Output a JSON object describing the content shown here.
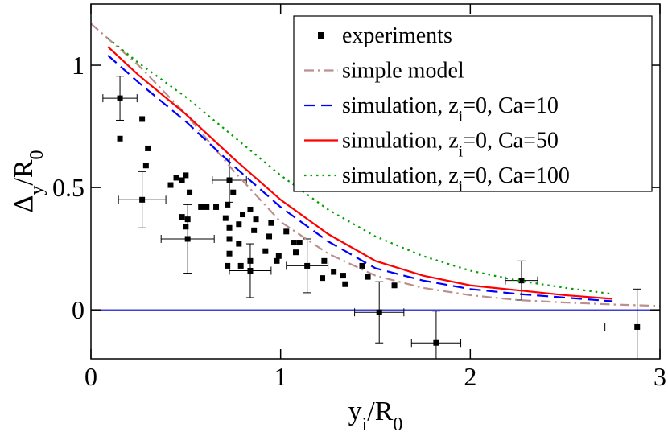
{
  "chart_data": {
    "type": "scatter",
    "xlabel": [
      {
        "text": "y"
      },
      {
        "text": "i",
        "sub": true
      },
      {
        "text": "/R"
      },
      {
        "text": "0",
        "sub": true
      }
    ],
    "ylabel": [
      {
        "text": "Δ"
      },
      {
        "text": "y",
        "sub": true
      },
      {
        "text": "/R"
      },
      {
        "text": "0",
        "sub": true
      }
    ],
    "xlim": [
      0,
      3
    ],
    "ylim": [
      -0.2,
      1.25
    ],
    "xticks": [
      0,
      1,
      2,
      3
    ],
    "yticks": [
      0,
      0.5,
      1
    ],
    "legend": "upper right",
    "zero_line": {
      "y": 0,
      "color": "#0000cc"
    },
    "series": [
      {
        "type": "scatter",
        "name": [
          {
            "text": "experiments"
          }
        ],
        "color": "#000000",
        "x": [
          0.153,
          0.27,
          0.51,
          0.73,
          0.84,
          1.14,
          1.52,
          1.82,
          2.27,
          2.88,
          0.153,
          0.27,
          0.3,
          0.29,
          0.42,
          0.45,
          0.48,
          0.5,
          0.52,
          0.48,
          0.51,
          0.5,
          0.58,
          0.61,
          0.66,
          0.72,
          0.75,
          0.71,
          0.73,
          0.73,
          0.8,
          0.84,
          0.78,
          0.87,
          0.86,
          0.78,
          0.73,
          0.84,
          0.92,
          0.79,
          0.72,
          0.95,
          0.94,
          0.99,
          0.98,
          1.03,
          1.07,
          1.1,
          1.08,
          1.23,
          1.28,
          1.22,
          1.33,
          1.34,
          1.43,
          1.46,
          1.6
        ],
        "values": [
          0.865,
          0.45,
          0.29,
          0.53,
          0.16,
          0.18,
          -0.01,
          -0.135,
          0.12,
          -0.07,
          0.7,
          0.78,
          0.66,
          0.59,
          0.51,
          0.54,
          0.53,
          0.55,
          0.48,
          0.38,
          0.37,
          0.34,
          0.42,
          0.42,
          0.42,
          0.43,
          0.48,
          0.375,
          0.335,
          0.29,
          0.39,
          0.41,
          0.35,
          0.37,
          0.325,
          0.27,
          0.23,
          0.2,
          0.24,
          0.18,
          0.18,
          0.355,
          0.3,
          0.22,
          0.2,
          0.32,
          0.275,
          0.275,
          0.235,
          0.2,
          0.155,
          0.13,
          0.14,
          0.105,
          0.18,
          0.135,
          0.1
        ],
        "xerr": [
          0.09,
          0.125,
          0.14,
          0.09,
          0.11,
          0.11,
          0.13,
          0.13,
          0.085,
          0.17,
          null,
          null,
          null,
          null,
          null,
          null,
          null,
          null,
          null,
          null,
          null,
          null,
          null,
          null,
          null,
          null,
          null,
          null,
          null,
          null,
          null,
          null,
          null,
          null,
          null,
          null,
          null,
          null,
          null,
          null,
          null,
          null,
          null,
          null,
          null,
          null,
          null,
          null,
          null,
          null,
          null,
          null,
          null,
          null,
          null,
          null,
          null
        ],
        "yerr": [
          0.09,
          0.115,
          0.14,
          0.09,
          0.11,
          0.11,
          0.125,
          0.13,
          0.08,
          0.155,
          null,
          null,
          null,
          null,
          null,
          null,
          null,
          null,
          null,
          null,
          null,
          null,
          null,
          null,
          null,
          null,
          null,
          null,
          null,
          null,
          null,
          null,
          null,
          null,
          null,
          null,
          null,
          null,
          null,
          null,
          null,
          null,
          null,
          null,
          null,
          null,
          null,
          null,
          null,
          null,
          null,
          null,
          null,
          null,
          null,
          null,
          null
        ]
      },
      {
        "type": "line",
        "name": [
          {
            "text": "simple model"
          }
        ],
        "color": "#bc8f8f",
        "style": "dashdot",
        "x": [
          0,
          0.25,
          0.5,
          0.75,
          1,
          1.25,
          1.5,
          1.75,
          2,
          2.25,
          2.5,
          2.75,
          3
        ],
        "values": [
          1.17,
          1.0,
          0.8,
          0.57,
          0.36,
          0.23,
          0.14,
          0.09,
          0.06,
          0.04,
          0.03,
          0.022,
          0.016
        ]
      },
      {
        "type": "line",
        "name": [
          {
            "text": "simulation, z"
          },
          {
            "text": "i",
            "sub": true
          },
          {
            "text": "=0, Ca=10"
          }
        ],
        "color": "#0000ff",
        "style": "dashed",
        "x": [
          0.09,
          0.25,
          0.5,
          0.75,
          1,
          1.25,
          1.5,
          1.75,
          2,
          2.25,
          2.5,
          2.75
        ],
        "values": [
          1.04,
          0.93,
          0.77,
          0.59,
          0.42,
          0.28,
          0.17,
          0.12,
          0.085,
          0.065,
          0.05,
          0.035
        ]
      },
      {
        "type": "line",
        "name": [
          {
            "text": "simulation, z"
          },
          {
            "text": "i",
            "sub": true
          },
          {
            "text": "=0, Ca=50"
          }
        ],
        "color": "#ff0000",
        "style": "solid",
        "x": [
          0.09,
          0.25,
          0.5,
          0.75,
          1,
          1.25,
          1.5,
          1.75,
          2,
          2.25,
          2.5,
          2.75
        ],
        "values": [
          1.075,
          0.96,
          0.8,
          0.62,
          0.45,
          0.31,
          0.2,
          0.14,
          0.1,
          0.08,
          0.06,
          0.045
        ]
      },
      {
        "type": "line",
        "name": [
          {
            "text": "simulation, z"
          },
          {
            "text": "i",
            "sub": true
          },
          {
            "text": "=0, Ca=100"
          }
        ],
        "color": "#00a000",
        "style": "dotted",
        "x": [
          0.09,
          0.25,
          0.5,
          0.75,
          1,
          1.25,
          1.5,
          1.75,
          2,
          2.25,
          2.5,
          2.75
        ],
        "values": [
          1.11,
          1.01,
          0.87,
          0.71,
          0.55,
          0.41,
          0.3,
          0.22,
          0.16,
          0.12,
          0.09,
          0.065
        ]
      }
    ]
  }
}
